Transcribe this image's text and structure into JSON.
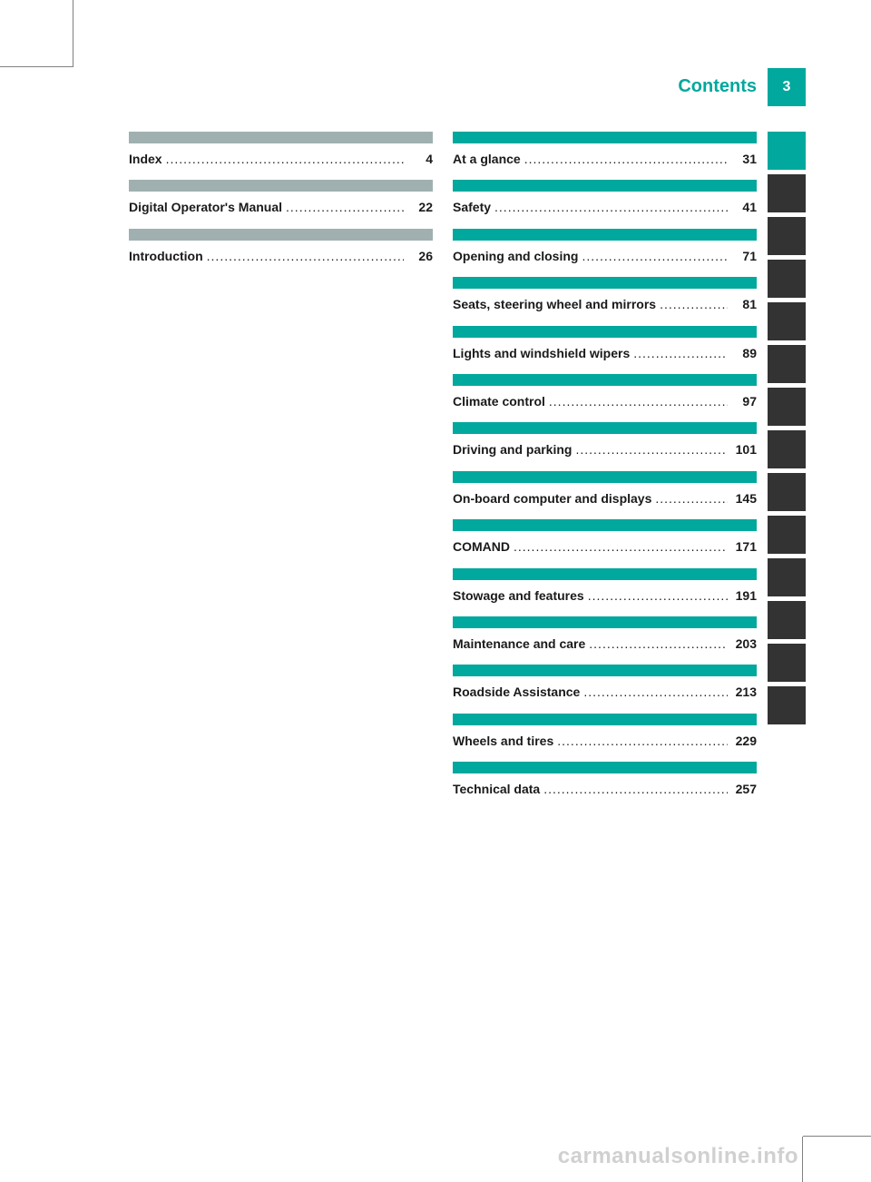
{
  "header": {
    "title": "Contents",
    "page_number": "3"
  },
  "left_entries": [
    {
      "label": "Index",
      "page": "4",
      "bar_color": "gray"
    },
    {
      "label": "Digital Operator's Manual",
      "page": "22",
      "bar_color": "gray"
    },
    {
      "label": "Introduction",
      "page": "26",
      "bar_color": "gray"
    }
  ],
  "right_entries": [
    {
      "label": "At a glance",
      "page": "31",
      "bar_color": "teal"
    },
    {
      "label": "Safety",
      "page": "41",
      "bar_color": "teal"
    },
    {
      "label": "Opening and closing",
      "page": "71",
      "bar_color": "teal"
    },
    {
      "label": "Seats, steering wheel and mirrors",
      "page": "81",
      "bar_color": "teal"
    },
    {
      "label": "Lights and windshield wipers",
      "page": "89",
      "bar_color": "teal"
    },
    {
      "label": "Climate control",
      "page": "97",
      "bar_color": "teal"
    },
    {
      "label": "Driving and parking",
      "page": "101",
      "bar_color": "teal"
    },
    {
      "label": "On-board computer and displays",
      "page": "145",
      "bar_color": "teal"
    },
    {
      "label": "COMAND",
      "page": "171",
      "bar_color": "teal"
    },
    {
      "label": "Stowage and features",
      "page": "191",
      "bar_color": "teal"
    },
    {
      "label": "Maintenance and care",
      "page": "203",
      "bar_color": "teal"
    },
    {
      "label": "Roadside Assistance",
      "page": "213",
      "bar_color": "teal"
    },
    {
      "label": "Wheels and tires",
      "page": "229",
      "bar_color": "teal"
    },
    {
      "label": "Technical data",
      "page": "257",
      "bar_color": "teal"
    }
  ],
  "tabs": [
    "teal",
    "dark",
    "dark",
    "dark",
    "dark",
    "dark",
    "dark",
    "dark",
    "dark",
    "dark",
    "dark",
    "dark",
    "dark",
    "dark"
  ],
  "watermark": "carmanualsonline.info",
  "colors": {
    "teal": "#00a89d",
    "gray": "#a0b0b0",
    "dark_tab": "#333333",
    "text": "#1a1a1a",
    "background": "#ffffff"
  }
}
